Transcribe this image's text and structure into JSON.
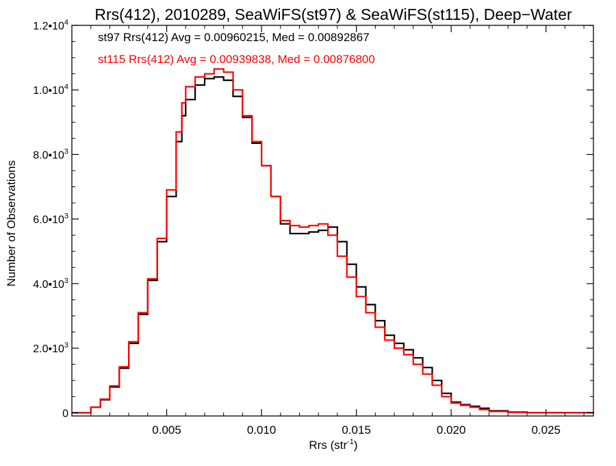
{
  "chart_data": {
    "type": "line",
    "title": "Rrs(412), 2010289, SeaWiFS(st97) & SeaWiFS(st115), Deep−Water",
    "xlabel": "Rrs (str",
    "xlabel_sup": "-1",
    "xlabel_close": ")",
    "ylabel": "Number of Observations",
    "xlim": [
      0.0,
      0.0275
    ],
    "ylim": [
      -100,
      12000
    ],
    "x_ticks": [
      {
        "value": 0.005,
        "label": "0.005"
      },
      {
        "value": 0.01,
        "label": "0.010"
      },
      {
        "value": 0.015,
        "label": "0.015"
      },
      {
        "value": 0.02,
        "label": "0.020"
      },
      {
        "value": 0.025,
        "label": "0.025"
      }
    ],
    "y_ticks": [
      {
        "value": 0,
        "mant": "0",
        "exp": ""
      },
      {
        "value": 2000,
        "mant": "2.0•10",
        "exp": "3"
      },
      {
        "value": 4000,
        "mant": "4.0•10",
        "exp": "3"
      },
      {
        "value": 6000,
        "mant": "6.0•10",
        "exp": "3"
      },
      {
        "value": 8000,
        "mant": "8.0•10",
        "exp": "3"
      },
      {
        "value": 10000,
        "mant": "1.0•10",
        "exp": "4"
      },
      {
        "value": 12000,
        "mant": "1.2•10",
        "exp": "4"
      }
    ],
    "annotations": [
      {
        "text": "st97 Rrs(412) Avg = 0.00960215, Med = 0.00892867",
        "color": "#000000"
      },
      {
        "text": "st115 Rrs(412) Avg = 0.00939838, Med = 0.00876800",
        "color": "#ff0000"
      }
    ],
    "series": [
      {
        "color": "#000000",
        "points": [
          [
            0.0,
            0
          ],
          [
            0.001,
            170
          ],
          [
            0.0015,
            400
          ],
          [
            0.002,
            800
          ],
          [
            0.0025,
            1380
          ],
          [
            0.003,
            2150
          ],
          [
            0.0035,
            3050
          ],
          [
            0.004,
            4100
          ],
          [
            0.0045,
            5300
          ],
          [
            0.005,
            6700
          ],
          [
            0.0055,
            8400
          ],
          [
            0.0058,
            9200
          ],
          [
            0.006,
            9700
          ],
          [
            0.0065,
            10150
          ],
          [
            0.007,
            10350
          ],
          [
            0.0075,
            10400
          ],
          [
            0.008,
            10300
          ],
          [
            0.0085,
            9800
          ],
          [
            0.009,
            9150
          ],
          [
            0.0095,
            8350
          ],
          [
            0.01,
            7650
          ],
          [
            0.0105,
            6700
          ],
          [
            0.011,
            5850
          ],
          [
            0.0115,
            5550
          ],
          [
            0.012,
            5550
          ],
          [
            0.0125,
            5600
          ],
          [
            0.013,
            5650
          ],
          [
            0.0135,
            5750
          ],
          [
            0.014,
            5300
          ],
          [
            0.0145,
            4600
          ],
          [
            0.015,
            3900
          ],
          [
            0.0155,
            3350
          ],
          [
            0.016,
            2850
          ],
          [
            0.0165,
            2400
          ],
          [
            0.017,
            2150
          ],
          [
            0.0175,
            1950
          ],
          [
            0.018,
            1700
          ],
          [
            0.0185,
            1400
          ],
          [
            0.019,
            1000
          ],
          [
            0.0195,
            600
          ],
          [
            0.02,
            330
          ],
          [
            0.0205,
            250
          ],
          [
            0.021,
            200
          ],
          [
            0.0215,
            140
          ],
          [
            0.022,
            60
          ],
          [
            0.023,
            20
          ],
          [
            0.024,
            5
          ],
          [
            0.0275,
            0
          ]
        ]
      },
      {
        "color": "#ff0000",
        "points": [
          [
            0.0,
            0
          ],
          [
            0.001,
            170
          ],
          [
            0.0015,
            420
          ],
          [
            0.002,
            830
          ],
          [
            0.0025,
            1420
          ],
          [
            0.003,
            2200
          ],
          [
            0.0035,
            3100
          ],
          [
            0.004,
            4150
          ],
          [
            0.0045,
            5400
          ],
          [
            0.005,
            6900
          ],
          [
            0.0055,
            8700
          ],
          [
            0.0058,
            9600
          ],
          [
            0.006,
            10100
          ],
          [
            0.0065,
            10400
          ],
          [
            0.007,
            10500
          ],
          [
            0.0075,
            10650
          ],
          [
            0.008,
            10550
          ],
          [
            0.0085,
            10000
          ],
          [
            0.009,
            9200
          ],
          [
            0.0095,
            8400
          ],
          [
            0.01,
            7650
          ],
          [
            0.0105,
            6700
          ],
          [
            0.011,
            5950
          ],
          [
            0.0115,
            5800
          ],
          [
            0.012,
            5750
          ],
          [
            0.0125,
            5800
          ],
          [
            0.013,
            5850
          ],
          [
            0.0135,
            5500
          ],
          [
            0.014,
            4850
          ],
          [
            0.0145,
            4200
          ],
          [
            0.015,
            3600
          ],
          [
            0.0155,
            3100
          ],
          [
            0.016,
            2650
          ],
          [
            0.0165,
            2250
          ],
          [
            0.017,
            2000
          ],
          [
            0.0175,
            1800
          ],
          [
            0.018,
            1500
          ],
          [
            0.0185,
            1200
          ],
          [
            0.019,
            850
          ],
          [
            0.0195,
            500
          ],
          [
            0.02,
            300
          ],
          [
            0.0205,
            230
          ],
          [
            0.021,
            170
          ],
          [
            0.0215,
            100
          ],
          [
            0.022,
            40
          ],
          [
            0.023,
            10
          ],
          [
            0.024,
            2
          ],
          [
            0.0275,
            0
          ]
        ]
      }
    ]
  }
}
